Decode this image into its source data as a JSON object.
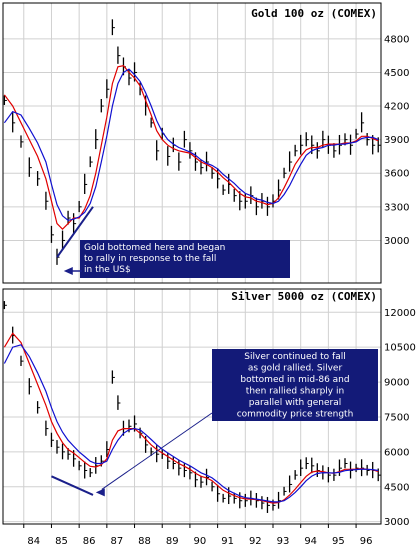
{
  "colors": {
    "background": "#ffffff",
    "grid": "#d0d0d0",
    "panel_border": "#000000",
    "price_bars": "#000000",
    "ma_red": "#e00000",
    "ma_blue": "#1010d0",
    "trendline": "#1a1f8a",
    "annotation_fill": "#131a78",
    "annotation_text": "#ffffff"
  },
  "chart_data": [
    {
      "type": "line",
      "title": "Gold 100 oz (COMEX)",
      "xlabel": "",
      "ylabel": "",
      "ylim": [
        2620,
        5120
      ],
      "xlim": [
        1983.25,
        1996.9
      ],
      "y_ticks": [
        3000,
        3300,
        3600,
        3900,
        4200,
        4500,
        4800
      ],
      "x_ticks": [
        "84",
        "85",
        "86",
        "87",
        "88",
        "89",
        "90",
        "91",
        "92",
        "93",
        "94",
        "95",
        "96"
      ],
      "grid": true,
      "x": [
        1983.3,
        1983.6,
        1983.9,
        1984.2,
        1984.5,
        1984.8,
        1985.0,
        1985.2,
        1985.4,
        1985.6,
        1985.8,
        1986.0,
        1986.2,
        1986.4,
        1986.6,
        1986.8,
        1987.0,
        1987.2,
        1987.4,
        1987.6,
        1987.8,
        1988.0,
        1988.2,
        1988.4,
        1988.6,
        1988.8,
        1989.0,
        1989.2,
        1989.4,
        1989.6,
        1989.8,
        1990.0,
        1990.2,
        1990.4,
        1990.6,
        1990.8,
        1991.0,
        1991.2,
        1991.4,
        1991.6,
        1991.8,
        1992.0,
        1992.2,
        1992.4,
        1992.6,
        1992.8,
        1993.0,
        1993.2,
        1993.4,
        1993.6,
        1993.8,
        1994.0,
        1994.2,
        1994.4,
        1994.6,
        1994.8,
        1995.0,
        1995.2,
        1995.4,
        1995.6,
        1995.8,
        1996.0,
        1996.2,
        1996.4,
        1996.6,
        1996.8
      ],
      "series": [
        {
          "values": [
            4250,
            4050,
            3880,
            3650,
            3550,
            3350,
            3050,
            2850,
            3000,
            3200,
            3150,
            3300,
            3500,
            3700,
            3900,
            4200,
            4350,
            4900,
            4650,
            4550,
            4450,
            4500,
            4350,
            4200,
            4050,
            3800,
            3950,
            3750,
            3850,
            3700,
            3900,
            3800,
            3700,
            3650,
            3700,
            3600,
            3550,
            3450,
            3500,
            3400,
            3350,
            3350,
            3400,
            3300,
            3350,
            3300,
            3350,
            3450,
            3600,
            3700,
            3800,
            3850,
            3900,
            3850,
            3800,
            3900,
            3850,
            3800,
            3850,
            3900,
            3850,
            3950,
            4050,
            3900,
            3850,
            3850
          ]
        },
        {
          "values": [
            4300,
            4200,
            4050,
            3900,
            3750,
            3550,
            3350,
            3150,
            3100,
            3150,
            3200,
            3200,
            3280,
            3400,
            3600,
            3850,
            4100,
            4400,
            4550,
            4560,
            4500,
            4450,
            4380,
            4250,
            4120,
            3980,
            3900,
            3850,
            3820,
            3800,
            3790,
            3780,
            3740,
            3700,
            3680,
            3650,
            3610,
            3560,
            3520,
            3470,
            3420,
            3390,
            3380,
            3350,
            3340,
            3320,
            3330,
            3380,
            3470,
            3570,
            3680,
            3750,
            3810,
            3830,
            3830,
            3850,
            3860,
            3860,
            3860,
            3870,
            3870,
            3890,
            3930,
            3930,
            3910,
            3890
          ]
        },
        {
          "values": [
            4050,
            4150,
            4120,
            4000,
            3870,
            3700,
            3500,
            3320,
            3220,
            3180,
            3190,
            3210,
            3250,
            3330,
            3480,
            3700,
            3930,
            4200,
            4400,
            4500,
            4530,
            4480,
            4420,
            4320,
            4200,
            4070,
            3970,
            3900,
            3860,
            3830,
            3810,
            3790,
            3760,
            3720,
            3690,
            3670,
            3640,
            3590,
            3550,
            3510,
            3460,
            3420,
            3400,
            3370,
            3360,
            3340,
            3330,
            3350,
            3410,
            3490,
            3590,
            3680,
            3760,
            3800,
            3820,
            3830,
            3850,
            3850,
            3860,
            3860,
            3870,
            3880,
            3910,
            3920,
            3920,
            3900
          ]
        }
      ],
      "trendline": {
        "from": [
          1985.2,
          2850
        ],
        "to": [
          1986.5,
          3300
        ]
      },
      "annotation": {
        "lines": [
          "Gold bottomed here and began",
          "to rally in response to the fall",
          "in the US$"
        ]
      }
    },
    {
      "type": "line",
      "title": "Silver 5000 oz (COMEX)",
      "xlabel": "",
      "ylabel": "",
      "ylim": [
        2900,
        13000
      ],
      "xlim": [
        1983.25,
        1996.9
      ],
      "y_ticks": [
        3000,
        4500,
        6000,
        7500,
        9000,
        10500,
        12000
      ],
      "x_ticks": [
        "84",
        "85",
        "86",
        "87",
        "88",
        "89",
        "90",
        "91",
        "92",
        "93",
        "94",
        "95",
        "96"
      ],
      "grid": true,
      "x": [
        1983.3,
        1983.6,
        1983.9,
        1984.2,
        1984.5,
        1984.8,
        1985.0,
        1985.2,
        1985.4,
        1985.6,
        1985.8,
        1986.0,
        1986.2,
        1986.4,
        1986.6,
        1986.8,
        1987.0,
        1987.2,
        1987.4,
        1987.6,
        1987.8,
        1988.0,
        1988.2,
        1988.4,
        1988.6,
        1988.8,
        1989.0,
        1989.2,
        1989.4,
        1989.6,
        1989.8,
        1990.0,
        1990.2,
        1990.4,
        1990.6,
        1990.8,
        1991.0,
        1991.2,
        1991.4,
        1991.6,
        1991.8,
        1992.0,
        1992.2,
        1992.4,
        1992.6,
        1992.8,
        1993.0,
        1993.2,
        1993.4,
        1993.6,
        1993.8,
        1994.0,
        1994.2,
        1994.4,
        1994.6,
        1994.8,
        1995.0,
        1995.2,
        1995.4,
        1995.6,
        1995.8,
        1996.0,
        1996.2,
        1996.4,
        1996.6,
        1996.8
      ],
      "series": [
        {
          "values": [
            12300,
            11000,
            9900,
            8800,
            7900,
            7000,
            6500,
            6200,
            6000,
            5900,
            5700,
            5400,
            5200,
            5100,
            5400,
            5600,
            6100,
            9200,
            8100,
            7000,
            7100,
            7200,
            6800,
            6300,
            6000,
            5900,
            5900,
            5600,
            5500,
            5300,
            5200,
            5100,
            4800,
            4700,
            4900,
            4500,
            4200,
            4000,
            4100,
            4000,
            3900,
            3900,
            4000,
            3900,
            3800,
            3700,
            3700,
            3900,
            4300,
            4600,
            5000,
            5300,
            5500,
            5400,
            5200,
            5100,
            5000,
            5000,
            5300,
            5500,
            5200,
            5300,
            5300,
            5200,
            5200,
            5000
          ]
        },
        {
          "values": [
            10500,
            11100,
            10700,
            9800,
            8900,
            8000,
            7300,
            6800,
            6400,
            6100,
            5950,
            5750,
            5550,
            5380,
            5350,
            5450,
            5700,
            6500,
            6900,
            7000,
            7000,
            7000,
            6800,
            6550,
            6300,
            6100,
            5950,
            5800,
            5650,
            5500,
            5380,
            5250,
            5080,
            4950,
            4880,
            4760,
            4550,
            4350,
            4230,
            4120,
            4030,
            3980,
            3970,
            3950,
            3900,
            3850,
            3800,
            3820,
            3940,
            4140,
            4400,
            4680,
            4950,
            5130,
            5180,
            5150,
            5100,
            5080,
            5150,
            5250,
            5250,
            5260,
            5280,
            5250,
            5230,
            5150
          ]
        },
        {
          "values": [
            9800,
            10500,
            10600,
            10100,
            9400,
            8600,
            7900,
            7300,
            6850,
            6500,
            6250,
            6000,
            5800,
            5600,
            5500,
            5500,
            5600,
            6100,
            6500,
            6800,
            6950,
            7000,
            6950,
            6750,
            6530,
            6310,
            6120,
            5950,
            5800,
            5650,
            5520,
            5400,
            5250,
            5100,
            5000,
            4880,
            4700,
            4500,
            4340,
            4220,
            4110,
            4030,
            4000,
            3970,
            3930,
            3890,
            3850,
            3850,
            3900,
            4050,
            4260,
            4500,
            4760,
            4960,
            5070,
            5110,
            5100,
            5090,
            5120,
            5190,
            5220,
            5240,
            5260,
            5250,
            5240,
            5200
          ]
        }
      ],
      "trendline": {
        "from": [
          1985.0,
          4950
        ],
        "to": [
          1986.5,
          4150
        ]
      },
      "annotation": {
        "lines": [
          "Silver continued to fall",
          "as gold rallied. Silver",
          "bottomed in mid-86 and",
          "then rallied sharply in",
          "parallel with general",
          "commodity price strength"
        ]
      }
    }
  ]
}
